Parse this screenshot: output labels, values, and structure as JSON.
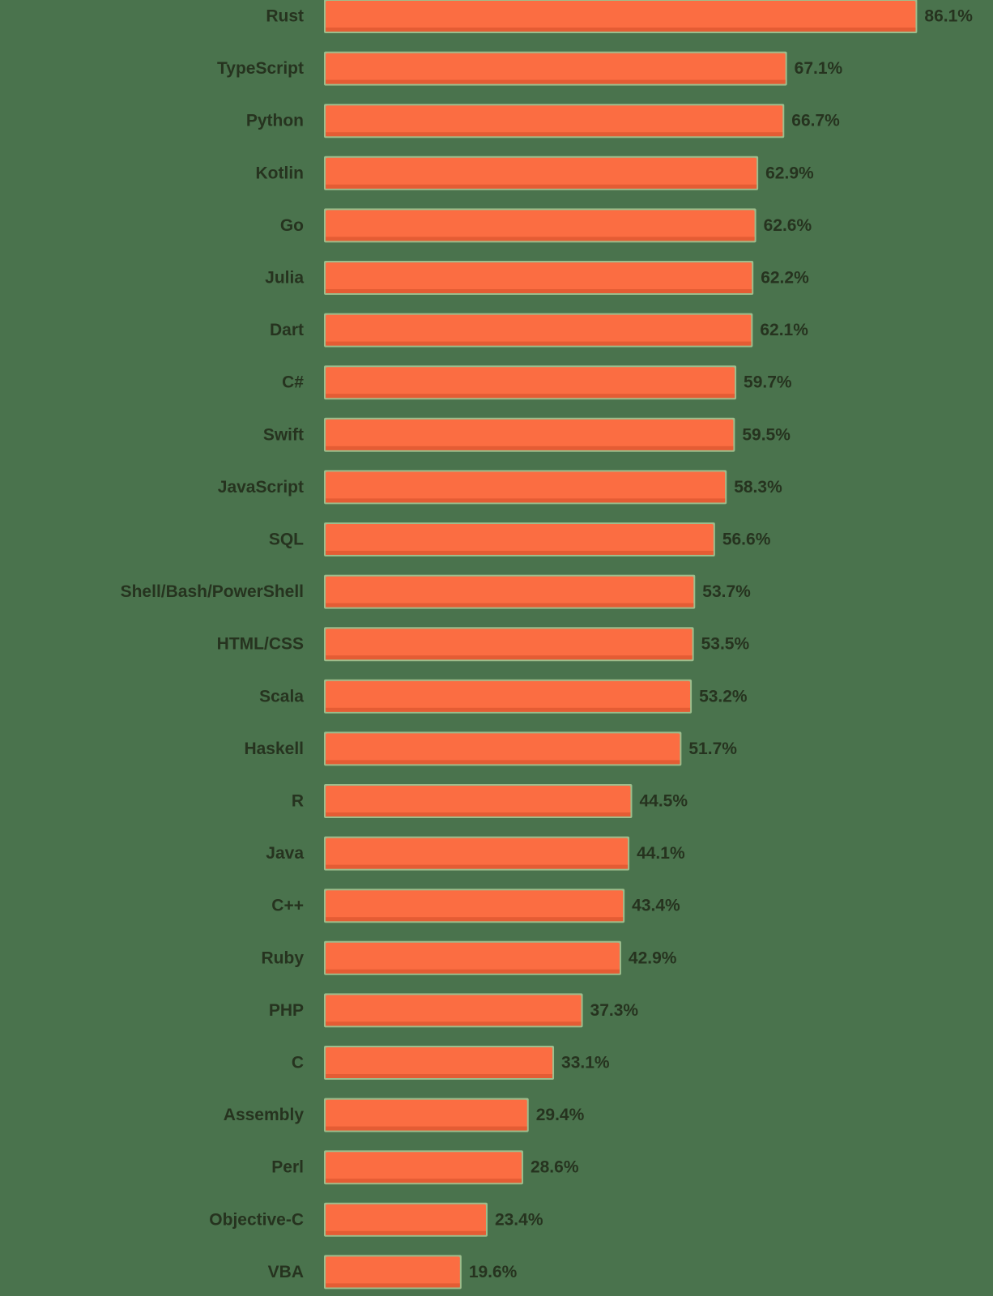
{
  "chart_data": {
    "type": "bar",
    "orientation": "horizontal",
    "title": "",
    "xlabel": "",
    "ylabel": "",
    "grid": false,
    "legend": "none",
    "xlim": [
      0,
      100
    ],
    "value_suffix": "%",
    "categories": [
      "Rust",
      "TypeScript",
      "Python",
      "Kotlin",
      "Go",
      "Julia",
      "Dart",
      "C#",
      "Swift",
      "JavaScript",
      "SQL",
      "Shell/Bash/PowerShell",
      "HTML/CSS",
      "Scala",
      "Haskell",
      "R",
      "Java",
      "C++",
      "Ruby",
      "PHP",
      "C",
      "Assembly",
      "Perl",
      "Objective-C",
      "VBA"
    ],
    "values": [
      86.1,
      67.1,
      66.7,
      62.9,
      62.6,
      62.2,
      62.1,
      59.7,
      59.5,
      58.3,
      56.6,
      53.7,
      53.5,
      53.2,
      51.7,
      44.5,
      44.1,
      43.4,
      42.9,
      37.3,
      33.1,
      29.4,
      28.6,
      23.4,
      19.6
    ],
    "value_labels": [
      "86.1%",
      "67.1%",
      "66.7%",
      "62.9%",
      "62.6%",
      "62.2%",
      "62.1%",
      "59.7%",
      "59.5%",
      "58.3%",
      "56.6%",
      "53.7%",
      "53.5%",
      "53.2%",
      "51.7%",
      "44.5%",
      "44.1%",
      "43.4%",
      "42.9%",
      "37.3%",
      "33.1%",
      "29.4%",
      "28.6%",
      "23.4%",
      "19.6%"
    ],
    "colors": {
      "bar": "#fb6d42",
      "bar_edge": "#e45c34",
      "bar_outline": "#9dbd8c",
      "text": "#26331f",
      "background": "#4a734d"
    }
  }
}
